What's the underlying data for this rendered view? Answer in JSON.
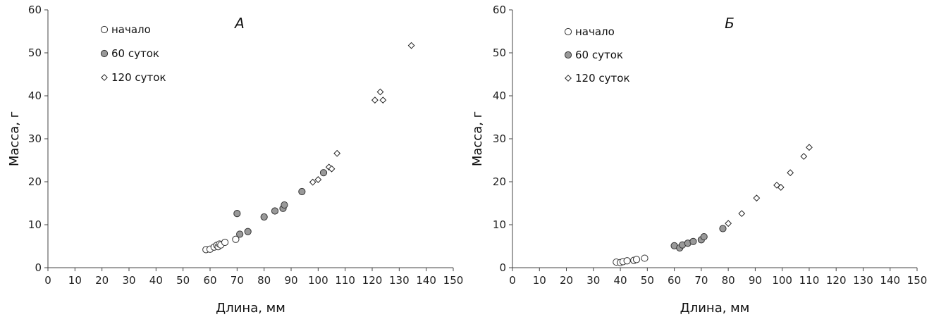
{
  "chart_data": [
    {
      "type": "scatter",
      "title": "А",
      "xlabel": "Длина, мм",
      "ylabel": "Масса, г",
      "xlim": [
        0,
        150
      ],
      "ylim": [
        0,
        60
      ],
      "xticks": [
        "0",
        "10",
        "20",
        "30",
        "40",
        "50",
        "60",
        "70",
        "80",
        "90",
        "100",
        "110",
        "120",
        "130",
        "140",
        "150"
      ],
      "yticks": [
        "0",
        "10",
        "20",
        "30",
        "40",
        "50",
        "60"
      ],
      "grid": false,
      "legend_position": "top-left",
      "series": [
        {
          "name": "начало",
          "marker": "circle-open",
          "color": "#ffffff",
          "points": [
            [
              58.5,
              4.2
            ],
            [
              60,
              4.3
            ],
            [
              61.5,
              4.8
            ],
            [
              62.5,
              5.2
            ],
            [
              63,
              4.9
            ],
            [
              63.5,
              5.5
            ],
            [
              64,
              5.3
            ],
            [
              65.5,
              5.9
            ],
            [
              69.5,
              6.6
            ]
          ]
        },
        {
          "name": "60 суток",
          "marker": "circle-filled",
          "color": "#999999",
          "points": [
            [
              70,
              12.6
            ],
            [
              71,
              7.8
            ],
            [
              74,
              8.4
            ],
            [
              80,
              11.8
            ],
            [
              84,
              13.2
            ],
            [
              87,
              13.8
            ],
            [
              87.5,
              14.6
            ],
            [
              94,
              17.7
            ],
            [
              102,
              22.1
            ]
          ]
        },
        {
          "name": "120 суток",
          "marker": "diamond-open",
          "color": "#ffffff",
          "points": [
            [
              98,
              19.9
            ],
            [
              100,
              20.5
            ],
            [
              104,
              23.4
            ],
            [
              105,
              23
            ],
            [
              107,
              26.6
            ],
            [
              121,
              39
            ],
            [
              123,
              40.9
            ],
            [
              124,
              39
            ],
            [
              134.5,
              51.7
            ]
          ]
        }
      ]
    },
    {
      "type": "scatter",
      "title": "Б",
      "xlabel": "Длина, мм",
      "ylabel": "Масса, г",
      "xlim": [
        0,
        150
      ],
      "ylim": [
        0,
        60
      ],
      "xticks": [
        "0",
        "10",
        "20",
        "30",
        "40",
        "50",
        "60",
        "70",
        "80",
        "90",
        "100",
        "110",
        "120",
        "130",
        "140",
        "150"
      ],
      "yticks": [
        "0",
        "10",
        "20",
        "30",
        "40",
        "50",
        "60"
      ],
      "grid": false,
      "legend_position": "top-left",
      "series": [
        {
          "name": "начало",
          "marker": "circle-open",
          "color": "#ffffff",
          "points": [
            [
              38.5,
              1.3
            ],
            [
              40,
              1.2
            ],
            [
              41,
              1.4
            ],
            [
              42.5,
              1.6
            ],
            [
              45,
              1.7
            ],
            [
              46,
              1.9
            ],
            [
              49,
              2.2
            ]
          ]
        },
        {
          "name": "60 суток",
          "marker": "circle-filled",
          "color": "#999999",
          "points": [
            [
              60,
              5.1
            ],
            [
              62,
              4.6
            ],
            [
              63,
              5.3
            ],
            [
              65,
              5.7
            ],
            [
              67,
              6.1
            ],
            [
              70,
              6.5
            ],
            [
              71,
              7.2
            ],
            [
              78,
              9.1
            ]
          ]
        },
        {
          "name": "120 суток",
          "marker": "diamond-open",
          "color": "#ffffff",
          "points": [
            [
              80,
              10.3
            ],
            [
              85,
              12.6
            ],
            [
              90.5,
              16.2
            ],
            [
              98,
              19.2
            ],
            [
              99.5,
              18.7
            ],
            [
              103,
              22.1
            ],
            [
              108,
              25.9
            ],
            [
              110,
              28
            ]
          ]
        }
      ]
    }
  ]
}
